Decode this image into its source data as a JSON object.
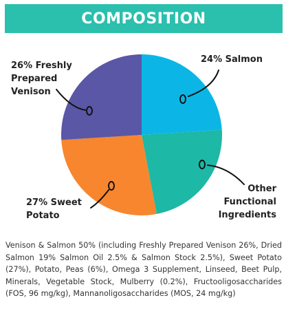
{
  "header": {
    "title": "COMPOSITION"
  },
  "chart_data": {
    "type": "pie",
    "title": "",
    "slices": [
      {
        "label": [
          "24% Salmon"
        ],
        "value": 24,
        "color": "#0bb6e6"
      },
      {
        "label": [
          "Other",
          "Functional",
          "Ingredients"
        ],
        "value": 23,
        "color": "#1db8a6"
      },
      {
        "label": [
          "27% Sweet",
          "Potato"
        ],
        "value": 27,
        "color": "#f7862f"
      },
      {
        "label": [
          "26% Freshly",
          "Prepared",
          "Venison"
        ],
        "value": 26,
        "color": "#5a57a6"
      }
    ]
  },
  "description": "Venison & Salmon 50% (including Freshly Prepared Venison 26%, Dried Salmon 19% Salmon Oil 2.5% & Salmon Stock 2.5%), Sweet Potato (27%), Potato, Peas (6%), Omega 3 Supplement, Linseed, Beet Pulp, Minerals, Vegetable Stock, Mulberry (0.2%), Fructooligosaccharides (FOS, 96 mg/kg),  Mannanoligosaccharides (MOS, 24 mg/kg)"
}
